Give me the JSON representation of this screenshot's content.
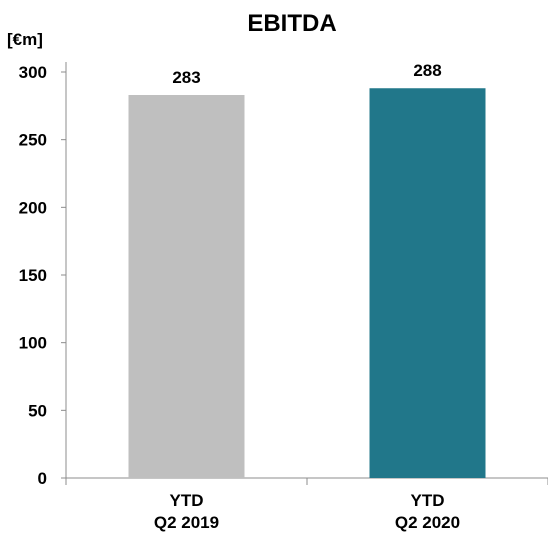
{
  "chart_data": {
    "type": "bar",
    "title": "EBITDA",
    "unit_label": "[€m]",
    "categories": [
      [
        "YTD",
        "Q2 2019"
      ],
      [
        "YTD",
        "Q2 2020"
      ]
    ],
    "values": [
      283,
      288
    ],
    "value_labels": [
      "283",
      "288"
    ],
    "bar_colors": [
      "#bfbfbf",
      "#21778a"
    ],
    "ylim": [
      0,
      300
    ],
    "yticks": [
      0,
      50,
      100,
      150,
      200,
      250,
      300
    ],
    "grid": false,
    "legend": "none"
  }
}
